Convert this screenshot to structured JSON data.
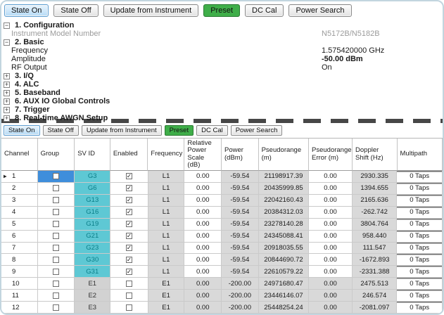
{
  "colors": {
    "state_on_bg": "#b6dbf6",
    "preset_green": "#3fae49",
    "sv_active_bg": "#5ec8d4",
    "sv_active_text": "#0a7e88",
    "group_selected_blue": "#3f8edb",
    "readonly_gray": "#d9d9d9"
  },
  "toolbar": {
    "buttons": [
      {
        "label": "State On",
        "variant": "state-on"
      },
      {
        "label": "State Off",
        "variant": "default"
      },
      {
        "label": "Update from Instrument",
        "variant": "default"
      },
      {
        "label": "Preset",
        "variant": "preset"
      },
      {
        "label": "DC Cal",
        "variant": "default"
      },
      {
        "label": "Power Search",
        "variant": "default"
      }
    ]
  },
  "tree": {
    "items": [
      {
        "type": "category",
        "expander": "minus",
        "label": "1. Configuration",
        "value": ""
      },
      {
        "type": "child",
        "label": "Instrument Model Number",
        "value": "N5172B/N5182B",
        "muted": true
      },
      {
        "type": "category",
        "expander": "minus",
        "label": "2. Basic",
        "value": ""
      },
      {
        "type": "child",
        "label": "Frequency",
        "value": "1.575420000 GHz",
        "muted": false
      },
      {
        "type": "child",
        "label": "Amplitude",
        "value": "-50.00 dBm",
        "muted": false,
        "bold_value": true
      },
      {
        "type": "child",
        "label": "RF Output",
        "value": "On",
        "muted": false
      },
      {
        "type": "category",
        "expander": "plus",
        "label": "3. I/Q",
        "value": ""
      },
      {
        "type": "category",
        "expander": "plus",
        "label": "4. ALC",
        "value": ""
      },
      {
        "type": "category",
        "expander": "plus",
        "label": "5. Baseband",
        "value": ""
      },
      {
        "type": "category",
        "expander": "plus",
        "label": "6. AUX IO Global Controls",
        "value": ""
      },
      {
        "type": "category",
        "expander": "plus",
        "label": "7. Trigger",
        "value": ""
      },
      {
        "type": "category",
        "expander": "plus",
        "label": "8. Real-time AWGN Setup",
        "value": ""
      }
    ]
  },
  "table": {
    "columns": [
      "Channel",
      "Group",
      "SV ID",
      "Enabled",
      "Frequency",
      "Relative Power Scale (dB)",
      "Power (dBm)",
      "Pseudorange (m)",
      "Pseudorange Error (m)",
      "Doppler Shift (Hz)",
      "Multipath"
    ],
    "rows": [
      {
        "channel": "1",
        "current": true,
        "group_selected": true,
        "group_checked": false,
        "sv_id": "G3",
        "sv_active": true,
        "enabled": true,
        "frequency": "L1",
        "rel_power": "0.00",
        "power": "-59.54",
        "pseudorange": "21198917.39",
        "pr_error": "0.00",
        "doppler": "2930.335",
        "multipath": "0 Taps"
      },
      {
        "channel": "2",
        "current": false,
        "group_selected": false,
        "group_checked": false,
        "sv_id": "G6",
        "sv_active": true,
        "enabled": true,
        "frequency": "L1",
        "rel_power": "0.00",
        "power": "-59.54",
        "pseudorange": "20435999.85",
        "pr_error": "0.00",
        "doppler": "1394.655",
        "multipath": "0 Taps"
      },
      {
        "channel": "3",
        "current": false,
        "group_selected": false,
        "group_checked": false,
        "sv_id": "G13",
        "sv_active": true,
        "enabled": true,
        "frequency": "L1",
        "rel_power": "0.00",
        "power": "-59.54",
        "pseudorange": "22042160.43",
        "pr_error": "0.00",
        "doppler": "2165.636",
        "multipath": "0 Taps"
      },
      {
        "channel": "4",
        "current": false,
        "group_selected": false,
        "group_checked": false,
        "sv_id": "G16",
        "sv_active": true,
        "enabled": true,
        "frequency": "L1",
        "rel_power": "0.00",
        "power": "-59.54",
        "pseudorange": "20384312.03",
        "pr_error": "0.00",
        "doppler": "-262.742",
        "multipath": "0 Taps"
      },
      {
        "channel": "5",
        "current": false,
        "group_selected": false,
        "group_checked": false,
        "sv_id": "G19",
        "sv_active": true,
        "enabled": true,
        "frequency": "L1",
        "rel_power": "0.00",
        "power": "-59.54",
        "pseudorange": "23278140.28",
        "pr_error": "0.00",
        "doppler": "3804.764",
        "multipath": "0 Taps"
      },
      {
        "channel": "6",
        "current": false,
        "group_selected": false,
        "group_checked": false,
        "sv_id": "G21",
        "sv_active": true,
        "enabled": true,
        "frequency": "L1",
        "rel_power": "0.00",
        "power": "-59.54",
        "pseudorange": "24345088.41",
        "pr_error": "0.00",
        "doppler": "958.440",
        "multipath": "0 Taps"
      },
      {
        "channel": "7",
        "current": false,
        "group_selected": false,
        "group_checked": false,
        "sv_id": "G23",
        "sv_active": true,
        "enabled": true,
        "frequency": "L1",
        "rel_power": "0.00",
        "power": "-59.54",
        "pseudorange": "20918035.55",
        "pr_error": "0.00",
        "doppler": "111.547",
        "multipath": "0 Taps"
      },
      {
        "channel": "8",
        "current": false,
        "group_selected": false,
        "group_checked": false,
        "sv_id": "G30",
        "sv_active": true,
        "enabled": true,
        "frequency": "L1",
        "rel_power": "0.00",
        "power": "-59.54",
        "pseudorange": "20844690.72",
        "pr_error": "0.00",
        "doppler": "-1672.893",
        "multipath": "0 Taps"
      },
      {
        "channel": "9",
        "current": false,
        "group_selected": false,
        "group_checked": false,
        "sv_id": "G31",
        "sv_active": true,
        "enabled": true,
        "frequency": "L1",
        "rel_power": "0.00",
        "power": "-59.54",
        "pseudorange": "22610579.22",
        "pr_error": "0.00",
        "doppler": "-2331.388",
        "multipath": "0 Taps"
      },
      {
        "channel": "10",
        "current": false,
        "group_selected": false,
        "group_checked": false,
        "sv_id": "E1",
        "sv_active": false,
        "enabled": false,
        "frequency": "E1",
        "rel_power": "0.00",
        "power": "-200.00",
        "pseudorange": "24971680.47",
        "pr_error": "0.00",
        "doppler": "2475.513",
        "multipath": "0 Taps"
      },
      {
        "channel": "11",
        "current": false,
        "group_selected": false,
        "group_checked": false,
        "sv_id": "E2",
        "sv_active": false,
        "enabled": false,
        "frequency": "E1",
        "rel_power": "0.00",
        "power": "-200.00",
        "pseudorange": "23446146.07",
        "pr_error": "0.00",
        "doppler": "246.574",
        "multipath": "0 Taps"
      },
      {
        "channel": "12",
        "current": false,
        "group_selected": false,
        "group_checked": false,
        "sv_id": "E3",
        "sv_active": false,
        "enabled": false,
        "frequency": "E1",
        "rel_power": "0.00",
        "power": "-200.00",
        "pseudorange": "25448254.24",
        "pr_error": "0.00",
        "doppler": "-2081.097",
        "multipath": "0 Taps"
      }
    ]
  }
}
